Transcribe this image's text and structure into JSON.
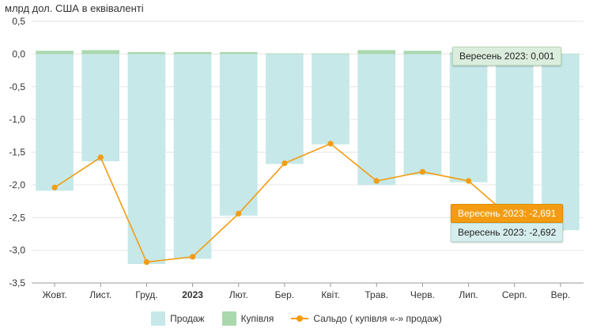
{
  "unit_label": "млрд дол. США в еквіваленті",
  "colors": {
    "sell": "#c6e8e8",
    "buy": "#a9d8ad",
    "saldo": "#f39c12",
    "grid": "#e6e6e6",
    "axis": "#999999",
    "text": "#333333"
  },
  "chart_data": {
    "type": "bar",
    "categories": [
      "Жовт.",
      "Лист.",
      "Груд.",
      "2023",
      "Лют.",
      "Бер.",
      "Квіт.",
      "Трав.",
      "Черв.",
      "Лип.",
      "Серп.",
      "Вер."
    ],
    "bold_categories": [
      "2023"
    ],
    "ylim": [
      -3.5,
      0.5
    ],
    "yticks": [
      0.5,
      0.0,
      -0.5,
      -1.0,
      -1.5,
      -2.0,
      -2.5,
      -3.0,
      -3.5
    ],
    "ytick_labels": [
      "0,5",
      "0,0",
      "-0,5",
      "-1,0",
      "-1,5",
      "-2,0",
      "-2,5",
      "-3,0",
      "-3,5"
    ],
    "grid": true,
    "legend_position": "bottom",
    "series": [
      {
        "name": "Продаж",
        "type": "bar",
        "values": [
          -2.09,
          -1.64,
          -3.21,
          -3.13,
          -2.47,
          -1.68,
          -1.38,
          -2.0,
          -1.85,
          -1.96,
          -2.56,
          -2.692
        ]
      },
      {
        "name": "Купівля",
        "type": "bar",
        "values": [
          0.05,
          0.06,
          0.03,
          0.03,
          0.03,
          0.01,
          0.01,
          0.06,
          0.05,
          0.02,
          0.01,
          0.001
        ]
      },
      {
        "name": "Сальдо ( купівля «-» продаж)",
        "type": "line",
        "values": [
          -2.04,
          -1.58,
          -3.18,
          -3.1,
          -2.44,
          -1.67,
          -1.37,
          -1.94,
          -1.8,
          -1.94,
          -2.55,
          -2.691
        ]
      }
    ],
    "tooltips": {
      "buy": "Вересень 2023: 0,001",
      "saldo": "Вересень 2023: -2,691",
      "sell": "Вересень 2023: -2,692"
    }
  }
}
